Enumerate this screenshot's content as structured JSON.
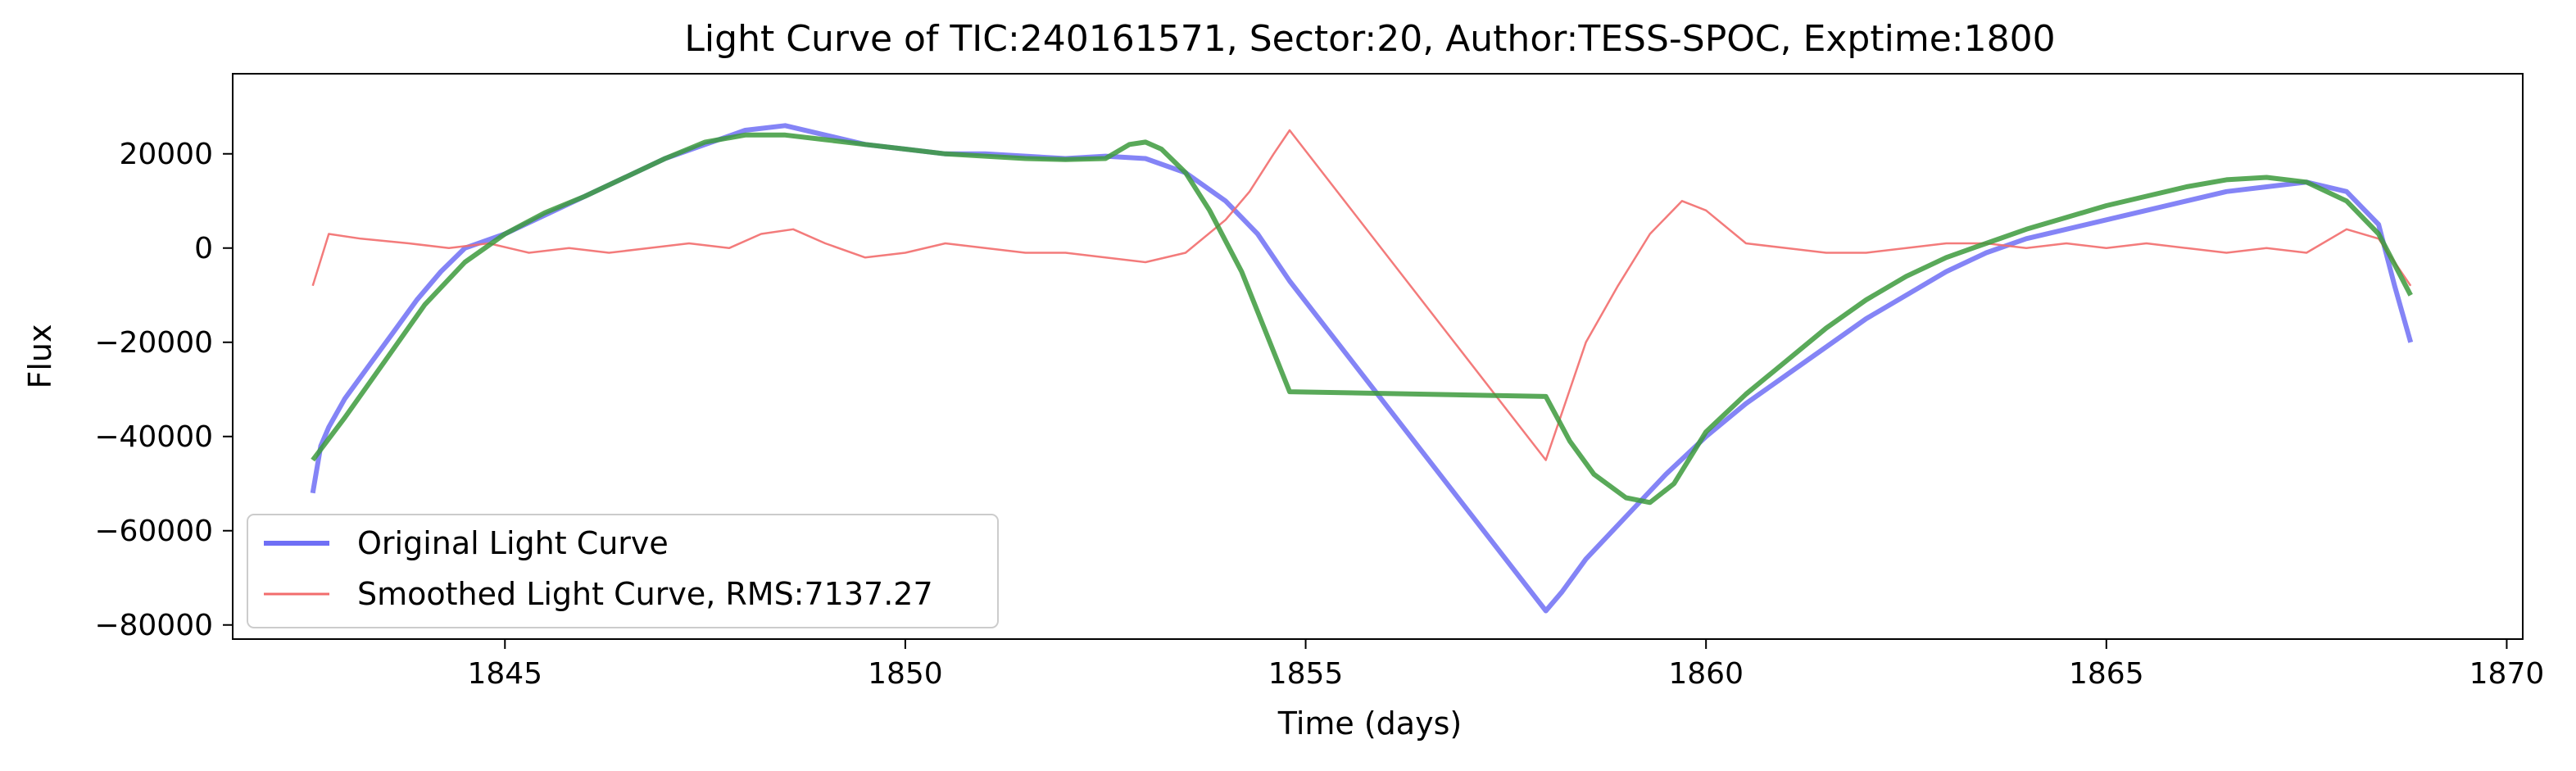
{
  "chart_data": {
    "type": "line",
    "title": "Light Curve of TIC:240161571, Sector:20, Author:TESS-SPOC, Exptime:1800",
    "xlabel": "Time (days)",
    "ylabel": "Flux",
    "xlim": [
      1841.6,
      1870.2
    ],
    "ylim": [
      -83000,
      37000
    ],
    "xticks": [
      1845,
      1850,
      1855,
      1860,
      1865,
      1870
    ],
    "yticks": [
      20000,
      0,
      -20000,
      -40000,
      -60000,
      -80000
    ],
    "xtick_labels": [
      "1845",
      "1850",
      "1855",
      "1860",
      "1865",
      "1870"
    ],
    "ytick_labels": [
      "20000",
      "0",
      "−20000",
      "−40000",
      "−60000",
      "−80000"
    ],
    "grid": false,
    "legend_position": "lower-left",
    "series": [
      {
        "name": "Original Light Curve",
        "color": "#6f6ff5",
        "style": "thick",
        "x": [
          1842.6,
          1842.7,
          1842.8,
          1843.0,
          1843.3,
          1843.6,
          1843.9,
          1844.2,
          1844.5,
          1845.0,
          1845.5,
          1846.0,
          1846.5,
          1847.0,
          1847.5,
          1848.0,
          1848.5,
          1849.0,
          1849.5,
          1850.0,
          1850.5,
          1851.0,
          1851.5,
          1852.0,
          1852.5,
          1853.0,
          1853.5,
          1854.0,
          1854.4,
          1854.6,
          1854.8,
          1858.0,
          1858.2,
          1858.5,
          1859.0,
          1859.5,
          1860.0,
          1860.5,
          1861.0,
          1861.5,
          1862.0,
          1862.5,
          1863.0,
          1863.5,
          1864.0,
          1864.5,
          1865.0,
          1865.5,
          1866.0,
          1866.5,
          1867.0,
          1867.5,
          1868.0,
          1868.4,
          1868.6,
          1868.8
        ],
        "values": [
          -52000,
          -42000,
          -38000,
          -32000,
          -25000,
          -18000,
          -11000,
          -5000,
          0,
          3000,
          7000,
          11000,
          15000,
          19000,
          22000,
          25000,
          26000,
          24000,
          22000,
          21000,
          20000,
          20000,
          19500,
          19000,
          19500,
          19000,
          16000,
          10000,
          3000,
          -2000,
          -7000,
          -77000,
          -73000,
          -66000,
          -57000,
          -48000,
          -40000,
          -33000,
          -27000,
          -21000,
          -15000,
          -10000,
          -5000,
          -1000,
          2000,
          4000,
          6000,
          8000,
          10000,
          12000,
          13000,
          14000,
          12000,
          5000,
          -8000,
          -20000
        ]
      },
      {
        "name": "Smoothed Light Curve, RMS:7137.27",
        "color": "#f26d6d",
        "style": "thin",
        "x": [
          1842.6,
          1842.8,
          1843.2,
          1843.8,
          1844.3,
          1844.8,
          1845.3,
          1845.8,
          1846.3,
          1846.8,
          1847.3,
          1847.8,
          1848.2,
          1848.6,
          1849.0,
          1849.5,
          1850.0,
          1850.5,
          1851.0,
          1851.5,
          1852.0,
          1852.5,
          1853.0,
          1853.5,
          1854.0,
          1854.3,
          1854.6,
          1854.8,
          1858.0,
          1858.2,
          1858.5,
          1858.9,
          1859.3,
          1859.7,
          1860.0,
          1860.5,
          1861.0,
          1861.5,
          1862.0,
          1862.5,
          1863.0,
          1863.5,
          1864.0,
          1864.5,
          1865.0,
          1865.5,
          1866.0,
          1866.5,
          1867.0,
          1867.5,
          1868.0,
          1868.4,
          1868.8
        ],
        "values": [
          -8000,
          3000,
          2000,
          1000,
          0,
          1000,
          -1000,
          0,
          -1000,
          0,
          1000,
          0,
          3000,
          4000,
          1000,
          -2000,
          -1000,
          1000,
          0,
          -1000,
          -1000,
          -2000,
          -3000,
          -1000,
          6000,
          12000,
          20000,
          25000,
          -45000,
          -35000,
          -20000,
          -8000,
          3000,
          10000,
          8000,
          1000,
          0,
          -1000,
          -1000,
          0,
          1000,
          1000,
          0,
          1000,
          0,
          1000,
          0,
          -1000,
          0,
          -1000,
          4000,
          2000,
          -8000
        ]
      },
      {
        "name": "",
        "color": "#3c9a3c",
        "style": "thick",
        "x": [
          1842.6,
          1843.0,
          1843.5,
          1844.0,
          1844.5,
          1845.0,
          1845.5,
          1846.0,
          1846.5,
          1847.0,
          1847.5,
          1848.0,
          1848.5,
          1849.0,
          1849.5,
          1850.0,
          1850.5,
          1851.0,
          1851.5,
          1852.0,
          1852.5,
          1852.8,
          1853.0,
          1853.2,
          1853.5,
          1853.8,
          1854.2,
          1854.8,
          1858.0,
          1858.3,
          1858.6,
          1859.0,
          1859.3,
          1859.6,
          1860.0,
          1860.5,
          1861.0,
          1861.5,
          1862.0,
          1862.5,
          1863.0,
          1863.5,
          1864.0,
          1864.5,
          1865.0,
          1865.5,
          1866.0,
          1866.5,
          1867.0,
          1867.5,
          1868.0,
          1868.4,
          1868.8
        ],
        "values": [
          -45000,
          -36000,
          -24000,
          -12000,
          -3000,
          3000,
          7500,
          11000,
          15000,
          19000,
          22500,
          24000,
          24000,
          23000,
          22000,
          21000,
          20000,
          19500,
          19000,
          18800,
          19000,
          22000,
          22500,
          21000,
          16000,
          8000,
          -5000,
          -30500,
          -31500,
          -41000,
          -48000,
          -53000,
          -54000,
          -50000,
          -39000,
          -31000,
          -24000,
          -17000,
          -11000,
          -6000,
          -2000,
          1000,
          4000,
          6500,
          9000,
          11000,
          13000,
          14500,
          15000,
          14000,
          10000,
          3000,
          -10000
        ]
      }
    ]
  }
}
